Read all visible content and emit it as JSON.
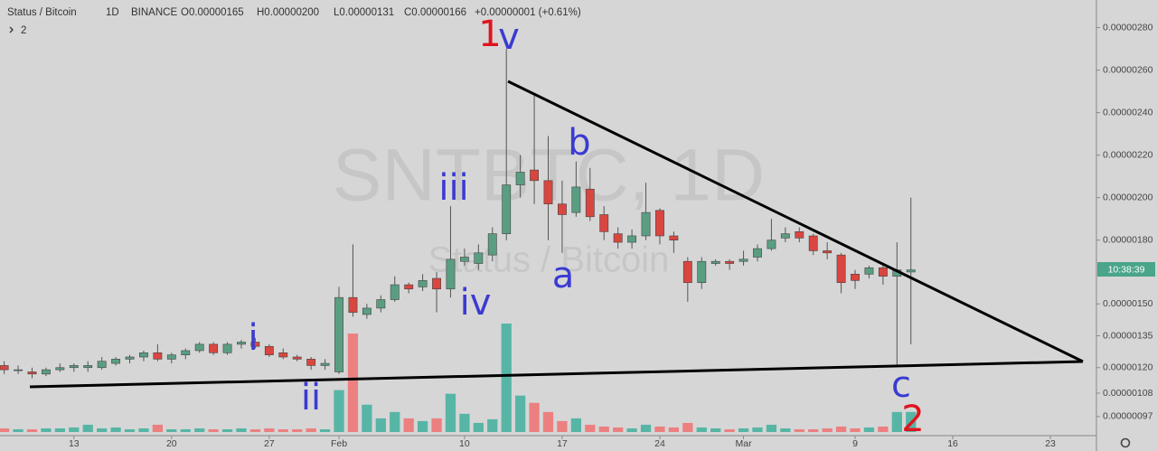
{
  "chart_data": {
    "type": "candlestick",
    "title": "Status / Bitcoin",
    "interval": "1D",
    "exchange": "BINANCE",
    "legend_open": "O0.00000165",
    "legend_high": "H0.00000200",
    "legend_low": "L0.00000131",
    "legend_close": "C0.00000166",
    "legend_change": "+0.00000001 (+0.61%)",
    "indicator_count": "2",
    "watermark": "SNTBTC, 1D",
    "watermark_name": "Status / Bitcoin",
    "countdown": "10:38:39",
    "annotations": [
      "1",
      "v",
      "iii",
      "b",
      "iv",
      "a",
      "i",
      "ii",
      "c",
      "2"
    ],
    "x": [
      0,
      1,
      2,
      3,
      4,
      5,
      6,
      7,
      8,
      9,
      10,
      11,
      12,
      13,
      14,
      15,
      16,
      17,
      18,
      19,
      20,
      21,
      22,
      23,
      24,
      25,
      26,
      27,
      28,
      29,
      30,
      31,
      32,
      33,
      34,
      35,
      36,
      37,
      38,
      39,
      40,
      41,
      42,
      43,
      44,
      45,
      46,
      47,
      48,
      49,
      50,
      51,
      52,
      53,
      54,
      55,
      56,
      57,
      58,
      59,
      60,
      61,
      62,
      63,
      64,
      65
    ],
    "open": [
      1.21e-06,
      1.19e-06,
      1.18e-06,
      1.17e-06,
      1.19e-06,
      1.2e-06,
      1.2e-06,
      1.2e-06,
      1.22e-06,
      1.24e-06,
      1.25e-06,
      1.27e-06,
      1.24e-06,
      1.26e-06,
      1.28e-06,
      1.31e-06,
      1.27e-06,
      1.31e-06,
      1.32e-06,
      1.3e-06,
      1.27e-06,
      1.25e-06,
      1.24e-06,
      1.21e-06,
      1.18e-06,
      1.53e-06,
      1.45e-06,
      1.48e-06,
      1.52e-06,
      1.59e-06,
      1.58e-06,
      1.62e-06,
      1.57e-06,
      1.7e-06,
      1.69e-06,
      1.73e-06,
      1.83e-06,
      2.06e-06,
      2.13e-06,
      2.08e-06,
      1.97e-06,
      1.93e-06,
      2.04e-06,
      1.92e-06,
      1.83e-06,
      1.79e-06,
      1.82e-06,
      1.94e-06,
      1.82e-06,
      1.7e-06,
      1.6e-06,
      1.69e-06,
      1.7e-06,
      1.7e-06,
      1.72e-06,
      1.76e-06,
      1.81e-06,
      1.84e-06,
      1.82e-06,
      1.75e-06,
      1.73e-06,
      1.64e-06,
      1.64e-06,
      1.67e-06,
      1.63e-06,
      1.65e-06
    ],
    "high": [
      1.23e-06,
      1.21e-06,
      1.2e-06,
      1.2e-06,
      1.22e-06,
      1.22e-06,
      1.23e-06,
      1.25e-06,
      1.25e-06,
      1.26e-06,
      1.28e-06,
      1.31e-06,
      1.27e-06,
      1.29e-06,
      1.32e-06,
      1.32e-06,
      1.32e-06,
      1.33e-06,
      1.34e-06,
      1.31e-06,
      1.29e-06,
      1.26e-06,
      1.25e-06,
      1.24e-06,
      1.58e-06,
      1.78e-06,
      1.5e-06,
      1.54e-06,
      1.63e-06,
      1.6e-06,
      1.64e-06,
      1.65e-06,
      1.96e-06,
      1.76e-06,
      1.78e-06,
      1.86e-06,
      2.7e-06,
      2.2e-06,
      2.48e-06,
      2.29e-06,
      2.08e-06,
      2.17e-06,
      2.14e-06,
      1.96e-06,
      1.86e-06,
      1.85e-06,
      2.07e-06,
      1.95e-06,
      1.84e-06,
      1.72e-06,
      1.72e-06,
      1.71e-06,
      1.71e-06,
      1.75e-06,
      1.78e-06,
      1.9e-06,
      1.86e-06,
      1.86e-06,
      1.83e-06,
      1.79e-06,
      1.74e-06,
      1.66e-06,
      1.68e-06,
      1.69e-06,
      1.79e-06,
      2e-06
    ],
    "low": [
      1.17e-06,
      1.17e-06,
      1.15e-06,
      1.16e-06,
      1.18e-06,
      1.18e-06,
      1.18e-06,
      1.19e-06,
      1.21e-06,
      1.22e-06,
      1.23e-06,
      1.23e-06,
      1.22e-06,
      1.24e-06,
      1.27e-06,
      1.26e-06,
      1.26e-06,
      1.29e-06,
      1.29e-06,
      1.25e-06,
      1.24e-06,
      1.23e-06,
      1.19e-06,
      1.19e-06,
      1.17e-06,
      1.44e-06,
      1.43e-06,
      1.46e-06,
      1.51e-06,
      1.55e-06,
      1.56e-06,
      1.46e-06,
      1.53e-06,
      1.68e-06,
      1.66e-06,
      1.7e-06,
      1.8e-06,
      2e-06,
      1.97e-06,
      1.8e-06,
      1.74e-06,
      1.91e-06,
      1.89e-06,
      1.8e-06,
      1.76e-06,
      1.76e-06,
      1.8e-06,
      1.78e-06,
      1.74e-06,
      1.51e-06,
      1.57e-06,
      1.68e-06,
      1.66e-06,
      1.68e-06,
      1.7e-06,
      1.75e-06,
      1.79e-06,
      1.79e-06,
      1.73e-06,
      1.71e-06,
      1.55e-06,
      1.57e-06,
      1.62e-06,
      1.59e-06,
      1.21e-06,
      1.31e-06
    ],
    "close": [
      1.19e-06,
      1.19e-06,
      1.17e-06,
      1.19e-06,
      1.2e-06,
      1.21e-06,
      1.21e-06,
      1.23e-06,
      1.24e-06,
      1.25e-06,
      1.27e-06,
      1.24e-06,
      1.26e-06,
      1.28e-06,
      1.31e-06,
      1.27e-06,
      1.31e-06,
      1.32e-06,
      1.3e-06,
      1.26e-06,
      1.25e-06,
      1.24e-06,
      1.21e-06,
      1.22e-06,
      1.53e-06,
      1.46e-06,
      1.48e-06,
      1.52e-06,
      1.59e-06,
      1.57e-06,
      1.61e-06,
      1.57e-06,
      1.71e-06,
      1.72e-06,
      1.74e-06,
      1.83e-06,
      2.06e-06,
      2.12e-06,
      2.08e-06,
      1.97e-06,
      1.92e-06,
      2.05e-06,
      1.91e-06,
      1.84e-06,
      1.79e-06,
      1.82e-06,
      1.93e-06,
      1.82e-06,
      1.8e-06,
      1.6e-06,
      1.7e-06,
      1.7e-06,
      1.69e-06,
      1.71e-06,
      1.76e-06,
      1.8e-06,
      1.83e-06,
      1.81e-06,
      1.75e-06,
      1.74e-06,
      1.6e-06,
      1.61e-06,
      1.67e-06,
      1.63e-06,
      1.66e-06,
      1.66e-06
    ],
    "volume": [
      4,
      3,
      3,
      4,
      4,
      5,
      8,
      4,
      5,
      3,
      4,
      8,
      3,
      3,
      4,
      3,
      3,
      4,
      3,
      4,
      3,
      3,
      4,
      3,
      46,
      108,
      30,
      15,
      22,
      15,
      12,
      15,
      42,
      20,
      10,
      14,
      119,
      40,
      32,
      22,
      12,
      15,
      8,
      6,
      5,
      4,
      8,
      6,
      5,
      10,
      5,
      4,
      3,
      4,
      5,
      8,
      4,
      3,
      3,
      4,
      6,
      4,
      5,
      6,
      22,
      22
    ],
    "up_color": "#5a9e82",
    "down_color": "#d9463f",
    "volume_up_color": "#57b5a6",
    "volume_down_color": "#ec8080",
    "xlim": [
      -0.3,
      78.3
    ],
    "xticks": [
      {
        "value": 5,
        "label": "13"
      },
      {
        "value": 12,
        "label": "20"
      },
      {
        "value": 19,
        "label": "27"
      },
      {
        "value": 24,
        "label": "Feb"
      },
      {
        "value": 33,
        "label": "10"
      },
      {
        "value": 40,
        "label": "17"
      },
      {
        "value": 47,
        "label": "24"
      },
      {
        "value": 53,
        "label": "Mar"
      },
      {
        "value": 61,
        "label": "9"
      },
      {
        "value": 68,
        "label": "16"
      },
      {
        "value": 75,
        "label": "23"
      }
    ],
    "ylim": [
      8.8e-07,
      2.93e-06
    ],
    "yticks": [
      {
        "value": 2.8e-06,
        "label": "0.00000280"
      },
      {
        "value": 2.6e-06,
        "label": "0.00000260"
      },
      {
        "value": 2.4e-06,
        "label": "0.00000240"
      },
      {
        "value": 2.2e-06,
        "label": "0.00000220"
      },
      {
        "value": 2e-06,
        "label": "0.00000200"
      },
      {
        "value": 1.8e-06,
        "label": "0.00000180"
      },
      {
        "value": 1.5e-06,
        "label": "0.00000150"
      },
      {
        "value": 1.35e-06,
        "label": "0.00000135"
      },
      {
        "value": 1.2e-06,
        "label": "0.00000120"
      },
      {
        "value": 1.08e-06,
        "label": "0.00000108"
      },
      {
        "value": 9.7e-07,
        "label": "0.00000097"
      }
    ]
  }
}
